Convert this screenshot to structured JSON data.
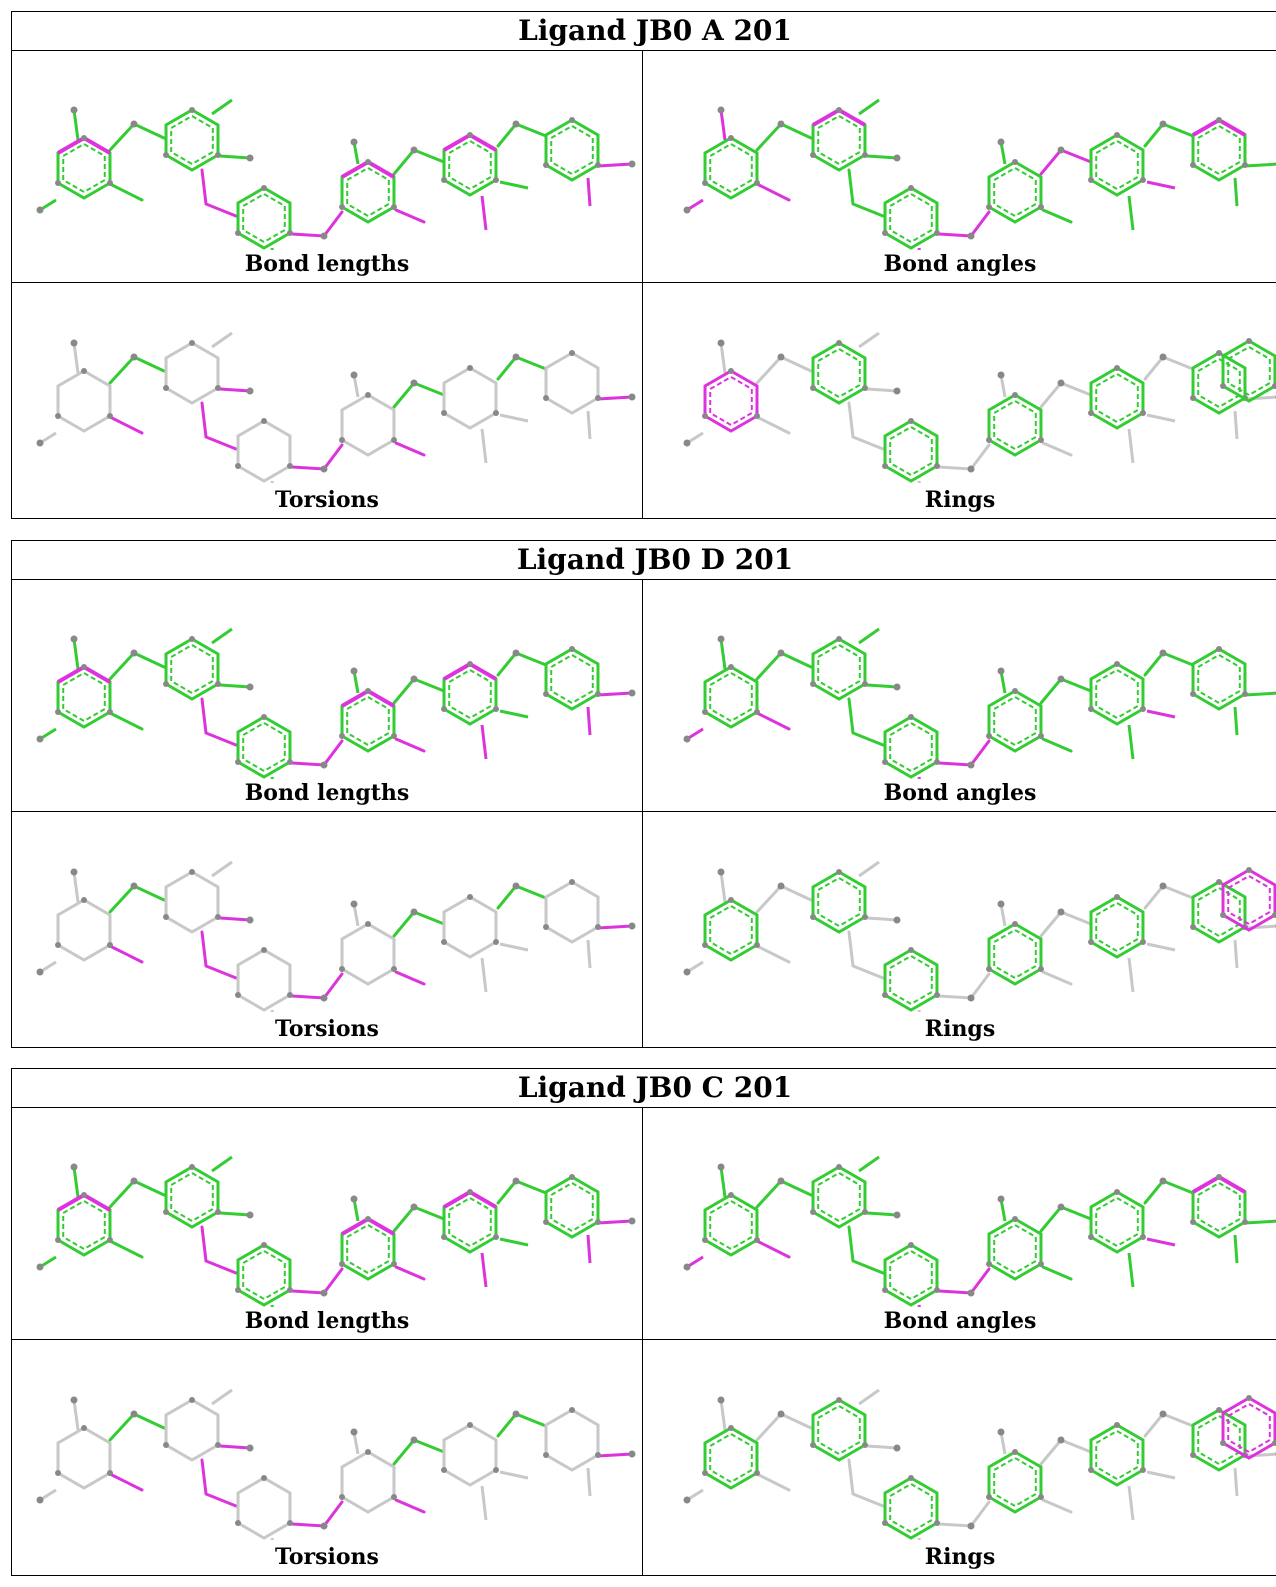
{
  "ligands": [
    {
      "title": "Ligand JB0 A 201",
      "panels": [
        {
          "caption": "Bond lengths",
          "mode": "lengths",
          "mag_rings": [
            0,
            3,
            4,
            6,
            8
          ],
          "mag_bonds": [
            1,
            2,
            7,
            8,
            11
          ]
        },
        {
          "caption": "Bond angles",
          "mode": "angles",
          "mag_rings": [
            1,
            5,
            6
          ],
          "mag_bonds": [
            2,
            3,
            5,
            9,
            10,
            11
          ]
        },
        {
          "caption": "Torsions",
          "mode": "torsions",
          "green_links": [
            0,
            3,
            4
          ],
          "mag_links": [
            1,
            2,
            5,
            6,
            7,
            8
          ]
        },
        {
          "caption": "Rings",
          "mode": "rings",
          "mag_rings": [
            0
          ]
        }
      ]
    },
    {
      "title": "Ligand JB0 D 201",
      "panels": [
        {
          "caption": "Bond lengths",
          "mode": "lengths",
          "mag_rings": [
            0,
            3,
            4,
            6,
            8
          ],
          "mag_bonds": [
            1,
            2,
            7,
            8
          ]
        },
        {
          "caption": "Bond angles",
          "mode": "angles",
          "mag_rings": [],
          "mag_bonds": [
            2,
            5,
            9,
            10,
            11
          ]
        },
        {
          "caption": "Torsions",
          "mode": "torsions",
          "green_links": [
            0,
            3,
            4
          ],
          "mag_links": [
            1,
            2,
            5,
            6,
            7,
            8
          ]
        },
        {
          "caption": "Rings",
          "mode": "rings",
          "mag_rings": [
            7
          ]
        }
      ]
    },
    {
      "title": "Ligand JB0 C 201",
      "panels": [
        {
          "caption": "Bond lengths",
          "mode": "lengths",
          "mag_rings": [
            0,
            3,
            4,
            6,
            8
          ],
          "mag_bonds": [
            1,
            2,
            7,
            8
          ]
        },
        {
          "caption": "Bond angles",
          "mode": "angles",
          "mag_rings": [
            5
          ],
          "mag_bonds": [
            2,
            5,
            9,
            10,
            11
          ]
        },
        {
          "caption": "Torsions",
          "mode": "torsions",
          "green_links": [
            0,
            3,
            4
          ],
          "mag_links": [
            1,
            2,
            5,
            6,
            7,
            8
          ]
        },
        {
          "caption": "Rings",
          "mode": "rings",
          "mag_rings": [
            7
          ]
        }
      ]
    }
  ],
  "colors": {
    "green": "#33cc33",
    "magenta": "#dd33dd",
    "gray": "#c8c8c8",
    "atom": "#888888",
    "border": "#000000"
  }
}
